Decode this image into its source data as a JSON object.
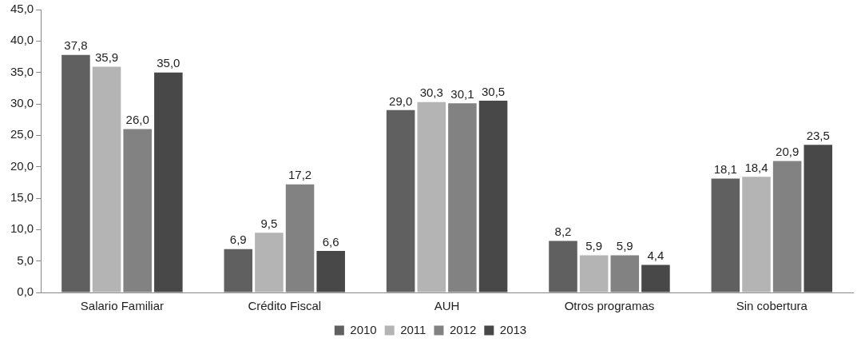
{
  "chart_data": {
    "type": "bar",
    "categories": [
      "Salario Familiar",
      "Crédito Fiscal",
      "AUH",
      "Otros programas",
      "Sin cobertura"
    ],
    "series": [
      {
        "name": "2010",
        "color": "#606060",
        "values": [
          37.8,
          6.9,
          29.0,
          8.2,
          18.1
        ],
        "value_labels": [
          "37,8",
          "6,9",
          "29,0",
          "8,2",
          "18,1"
        ]
      },
      {
        "name": "2011",
        "color": "#b4b4b4",
        "values": [
          35.9,
          9.5,
          30.3,
          5.9,
          18.4
        ],
        "value_labels": [
          "35,9",
          "9,5",
          "30,3",
          "5,9",
          "18,4"
        ]
      },
      {
        "name": "2012",
        "color": "#828282",
        "values": [
          26.0,
          17.2,
          30.1,
          5.9,
          20.9
        ],
        "value_labels": [
          "26,0",
          "17,2",
          "30,1",
          "5,9",
          "20,9"
        ]
      },
      {
        "name": "2013",
        "color": "#484848",
        "values": [
          35.0,
          6.6,
          30.5,
          4.4,
          23.5
        ],
        "value_labels": [
          "35,0",
          "6,6",
          "30,5",
          "4,4",
          "23,5"
        ]
      }
    ],
    "ylim": [
      0,
      45
    ],
    "yticks": [
      {
        "value": 0,
        "label": "0,0"
      },
      {
        "value": 5,
        "label": "5,0"
      },
      {
        "value": 10,
        "label": "10,0"
      },
      {
        "value": 15,
        "label": "15,0"
      },
      {
        "value": 20,
        "label": "20,0"
      },
      {
        "value": 25,
        "label": "25,0"
      },
      {
        "value": 30,
        "label": "30,0"
      },
      {
        "value": 35,
        "label": "35,0"
      },
      {
        "value": 40,
        "label": "40,0"
      },
      {
        "value": 45,
        "label": "45,0"
      }
    ],
    "grid": false,
    "legend": "bottom"
  }
}
